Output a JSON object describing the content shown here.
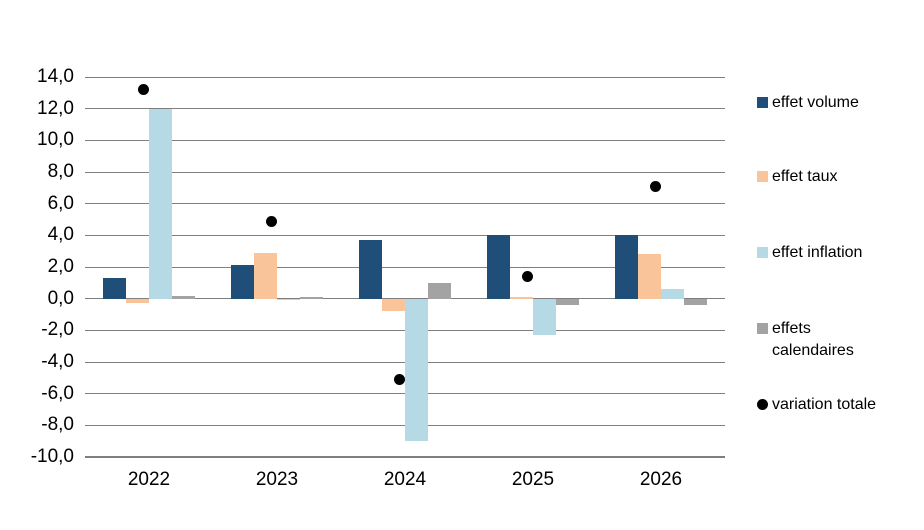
{
  "chart_data": {
    "type": "bar",
    "title": "",
    "xlabel": "",
    "ylabel": "",
    "categories": [
      "2022",
      "2023",
      "2024",
      "2025",
      "2026"
    ],
    "series": [
      {
        "name": "effet volume",
        "color": "#1F4E79",
        "values": [
          1.3,
          2.1,
          3.7,
          4.0,
          4.0
        ]
      },
      {
        "name": "effet taux",
        "color": "#F9C499",
        "values": [
          -0.3,
          2.9,
          -0.8,
          0.1,
          2.8
        ]
      },
      {
        "name": "effet inflation",
        "color": "#B5DAE5",
        "values": [
          12.0,
          -0.1,
          -9.0,
          -2.3,
          0.6
        ]
      },
      {
        "name": "effets calendaires",
        "color": "#A3A3A3",
        "values": [
          0.2,
          0.1,
          1.0,
          -0.4,
          -0.4
        ]
      }
    ],
    "point_series": [
      {
        "name": "variation totale",
        "color": "#000000",
        "marker": "circle",
        "values": [
          13.2,
          4.9,
          -5.1,
          1.4,
          7.1
        ]
      }
    ],
    "ylim": [
      -10,
      14
    ],
    "ytick_step": 2,
    "ytick_labels": [
      "14,0",
      "12,0",
      "10,0",
      "8,0",
      "6,0",
      "4,0",
      "2,0",
      "0,0",
      "-2,0",
      "-4,0",
      "-6,0",
      "-8,0",
      "-10,0"
    ],
    "grid": true,
    "legend_position": "right"
  },
  "legend": {
    "items": [
      {
        "label": "effet volume",
        "marker": "square",
        "color": "#1F4E79"
      },
      {
        "label": "effet taux",
        "marker": "square",
        "color": "#F9C499"
      },
      {
        "label": "effet inflation",
        "marker": "square",
        "color": "#B5DAE5"
      },
      {
        "label": "effets calendaires",
        "marker": "square",
        "color": "#A3A3A3"
      },
      {
        "label": "variation totale",
        "marker": "circle",
        "color": "#000000"
      }
    ]
  }
}
